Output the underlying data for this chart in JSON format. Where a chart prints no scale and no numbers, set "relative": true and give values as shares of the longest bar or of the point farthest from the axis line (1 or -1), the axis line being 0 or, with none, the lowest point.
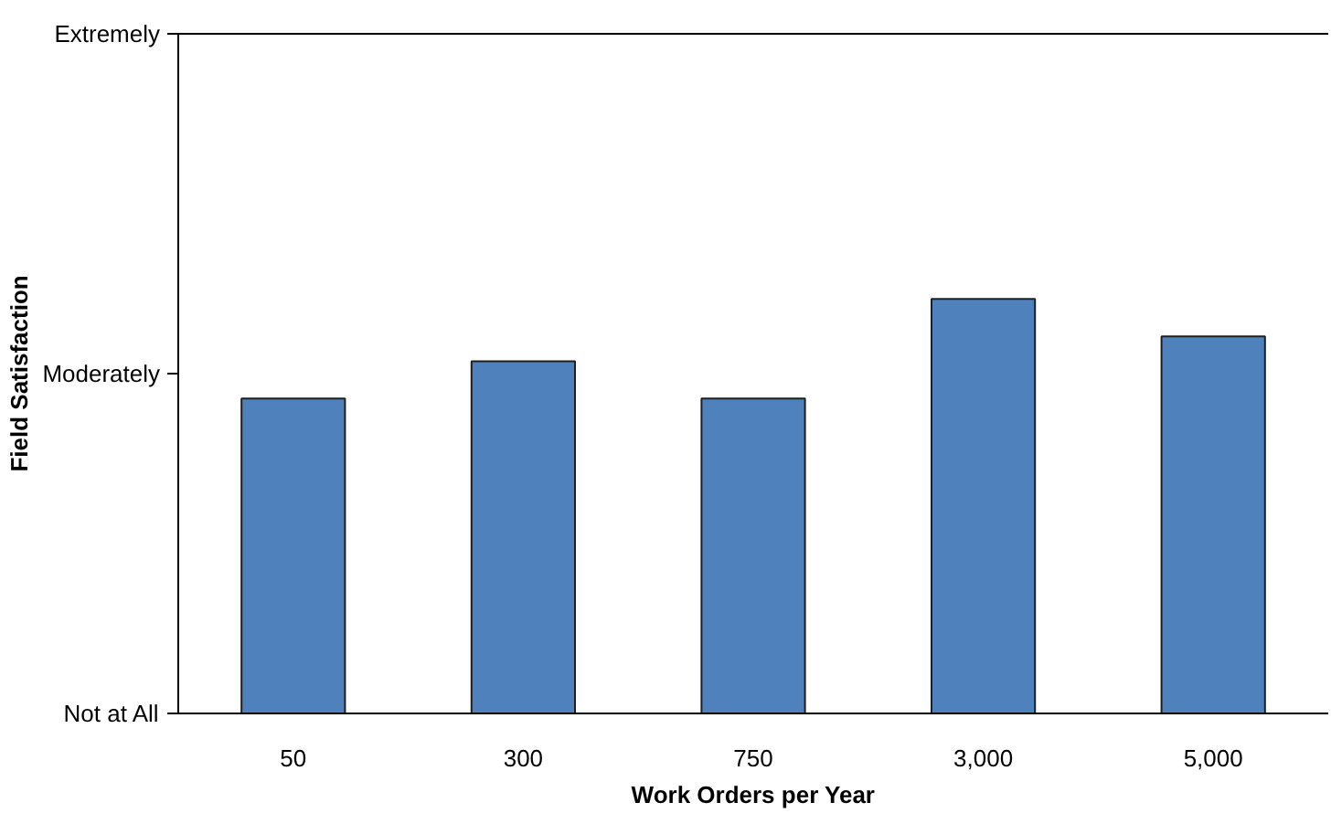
{
  "chart_data": {
    "type": "bar",
    "xlabel": "Work Orders per Year",
    "categories": [
      "50",
      "300",
      "750",
      "3,000",
      "5,000"
    ],
    "values": [
      0.76,
      0.85,
      0.76,
      1,
      0.91
    ],
    "color": "#4f81bd",
    "relative": true,
    "annotations": [
      "Not at All",
      "Moderately",
      "Extremely",
      "Field Satisfaction"
    ],
    "grid": false
  }
}
